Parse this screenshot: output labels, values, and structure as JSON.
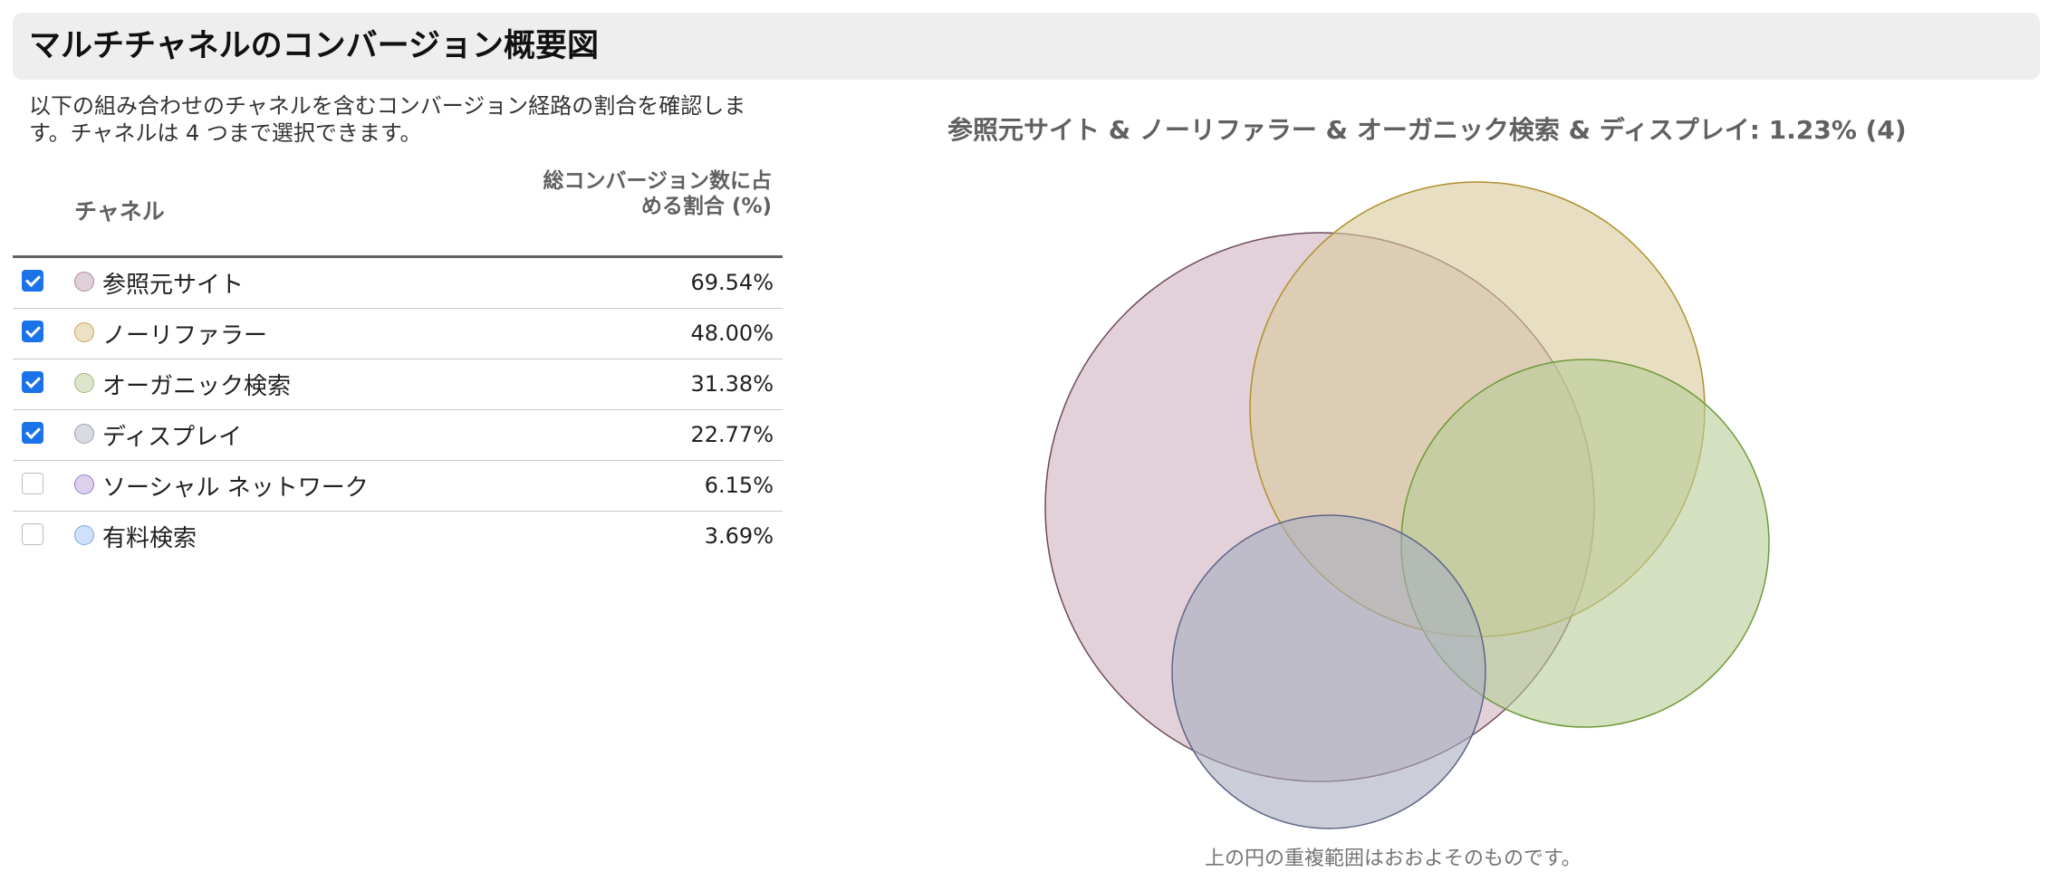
{
  "header": {
    "title": "マルチチャネルのコンバージョン概要図"
  },
  "description": "以下の組み合わせのチャネルを含むコンバージョン経路の割合を確認します。チャネルは 4 つまで選択できます。",
  "table": {
    "col_channel": "チャネル",
    "col_pct": "総コンバージョン数に占める割合 (%)",
    "rows": [
      {
        "label": "参照元サイト",
        "value": "69.54%",
        "checked": true,
        "color": "#e0d0d8",
        "border": "#b08a9c"
      },
      {
        "label": "ノーリファラー",
        "value": "48.00%",
        "checked": true,
        "color": "#ece1c4",
        "border": "#c8a65a"
      },
      {
        "label": "オーガニック検索",
        "value": "31.38%",
        "checked": true,
        "color": "#dde6cc",
        "border": "#9fb87a"
      },
      {
        "label": "ディスプレイ",
        "value": "22.77%",
        "checked": true,
        "color": "#d8dbe2",
        "border": "#9ba0b4"
      },
      {
        "label": "ソーシャル ネットワーク",
        "value": "6.15%",
        "checked": false,
        "color": "#dcd0ec",
        "border": "#9a7cc4"
      },
      {
        "label": "有料検索",
        "value": "3.69%",
        "checked": false,
        "color": "#cfe0fa",
        "border": "#7da4e4"
      }
    ]
  },
  "venn": {
    "title": "参照元サイト & ノーリファラー & オーガニック検索 & ディスプレイ: 1.23% (4)",
    "note": "上の円の重複範囲はおおよそのものです。",
    "circles": [
      {
        "name": "参照元サイト",
        "fill": "#cfb3bf",
        "stroke": "#6e4a5c"
      },
      {
        "name": "ノーリファラー",
        "fill": "#d9c99b",
        "stroke": "#b0902c"
      },
      {
        "name": "オーガニック検索",
        "fill": "#b7cd97",
        "stroke": "#6f9a38"
      },
      {
        "name": "ディスプレイ",
        "fill": "#a9adbf",
        "stroke": "#5f6687"
      }
    ]
  }
}
